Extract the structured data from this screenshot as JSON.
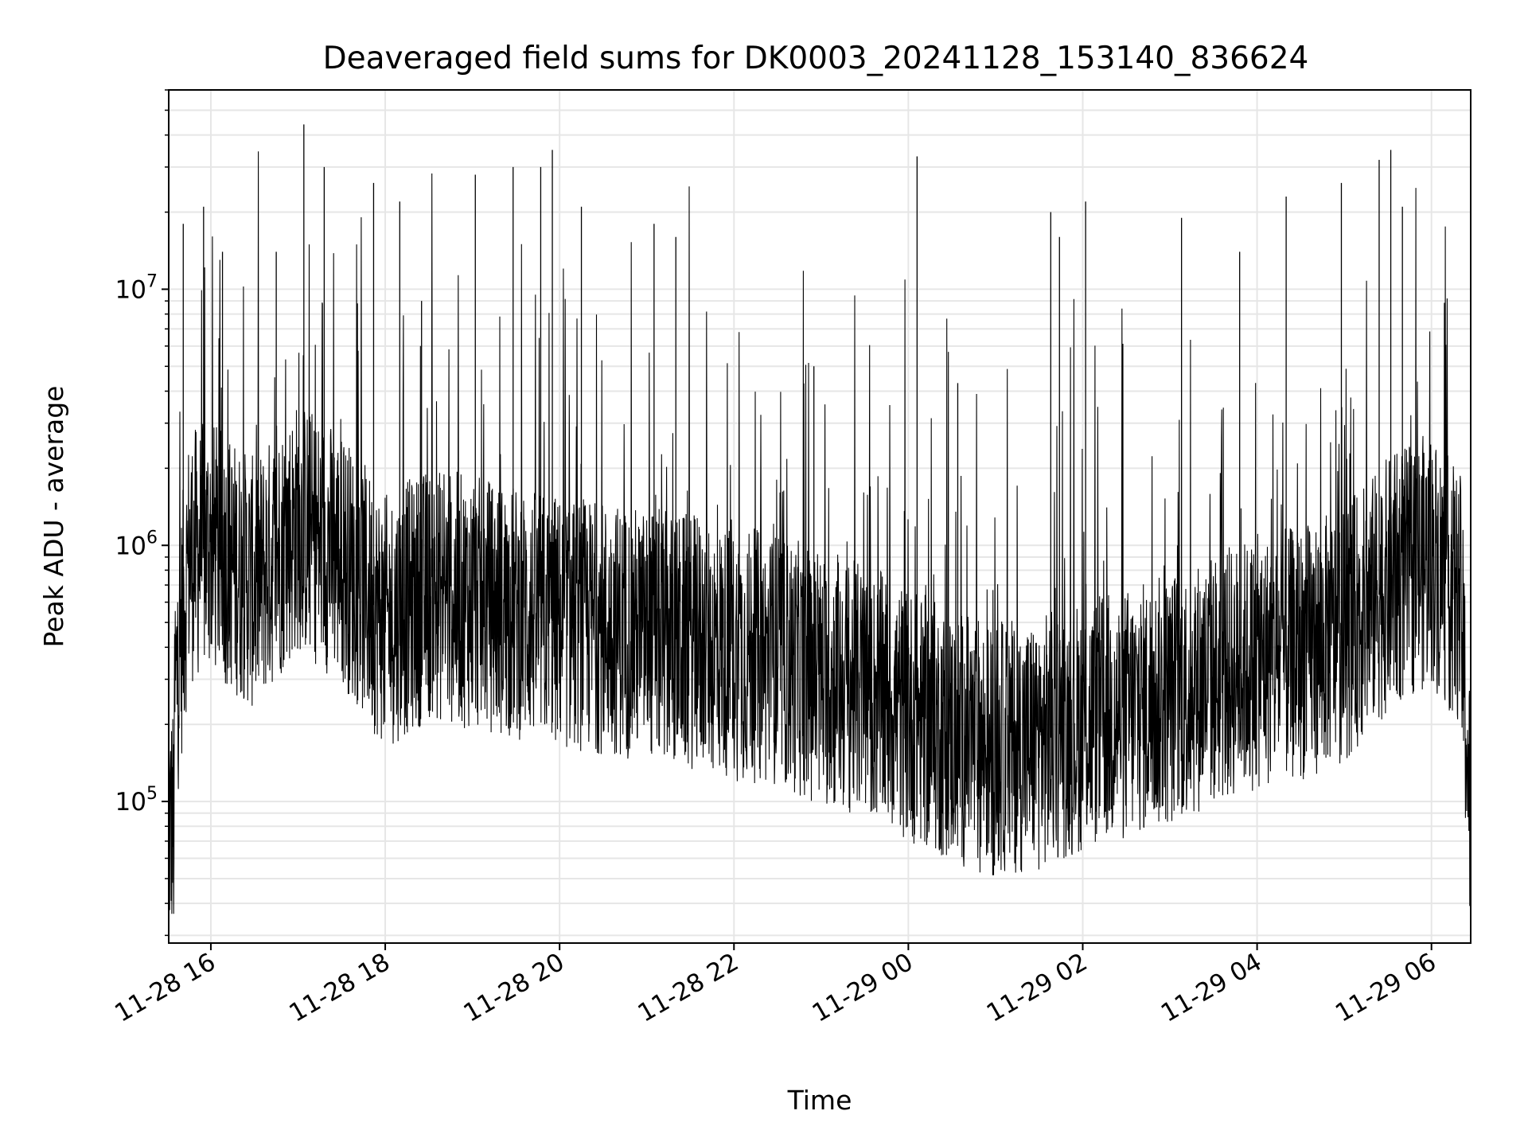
{
  "chart_data": {
    "type": "line",
    "title": "Deaveraged field sums for DK0003_20241128_153140_836624",
    "xlabel": "Time",
    "ylabel": "Peak ADU - average",
    "yscale": "log",
    "ylim": [
      28000,
      60000000
    ],
    "xlim": [
      "2024-11-28 15:31",
      "2024-11-29 06:27"
    ],
    "grid": true,
    "line_color": "#000000",
    "grid_color": "#e6e6e6",
    "x_ticks": [
      {
        "time": "2024-11-28 16:00",
        "label": "11-28 16"
      },
      {
        "time": "2024-11-28 18:00",
        "label": "11-28 18"
      },
      {
        "time": "2024-11-28 20:00",
        "label": "11-28 20"
      },
      {
        "time": "2024-11-28 22:00",
        "label": "11-28 22"
      },
      {
        "time": "2024-11-29 00:00",
        "label": "11-29 00"
      },
      {
        "time": "2024-11-29 02:00",
        "label": "11-29 02"
      },
      {
        "time": "2024-11-29 04:00",
        "label": "11-29 04"
      },
      {
        "time": "2024-11-29 06:00",
        "label": "11-29 06"
      }
    ],
    "y_ticks": [
      {
        "value": 100000,
        "base": "10",
        "exp": "5"
      },
      {
        "value": 1000000,
        "base": "10",
        "exp": "6"
      },
      {
        "value": 10000000,
        "base": "10",
        "exp": "7"
      }
    ],
    "series": [
      {
        "x": [
          "2024-11-28 15:35",
          "2024-11-28 15:45",
          "2024-11-28 16:00",
          "2024-11-28 16:30",
          "2024-11-28 17:00",
          "2024-11-28 17:30",
          "2024-11-28 18:00",
          "2024-11-28 18:30",
          "2024-11-28 19:00",
          "2024-11-28 19:30",
          "2024-11-28 20:00",
          "2024-11-28 20:30",
          "2024-11-28 21:00",
          "2024-11-28 21:30",
          "2024-11-28 22:00",
          "2024-11-28 22:30",
          "2024-11-28 23:00",
          "2024-11-28 23:30",
          "2024-11-29 00:00",
          "2024-11-29 00:30",
          "2024-11-29 01:00",
          "2024-11-29 01:30",
          "2024-11-29 02:00",
          "2024-11-29 02:30",
          "2024-11-29 03:00",
          "2024-11-29 03:30",
          "2024-11-29 04:00",
          "2024-11-29 04:30",
          "2024-11-29 05:00",
          "2024-11-29 05:30",
          "2024-11-29 06:00",
          "2024-11-29 06:20",
          "2024-11-29 06:27"
        ],
        "y": [
          250000,
          900000,
          1000000,
          700000,
          1200000,
          900000,
          500000,
          650000,
          600000,
          550000,
          500000,
          480000,
          450000,
          420000,
          380000,
          360000,
          300000,
          270000,
          220000,
          180000,
          160000,
          170000,
          200000,
          220000,
          250000,
          300000,
          350000,
          380000,
          450000,
          700000,
          900000,
          600000,
          80000
        ]
      },
      {
        "name_hidden": true,
        "x": [
          "2024-11-28 15:41",
          "2024-11-28 15:55",
          "2024-11-28 16:08",
          "2024-11-28 16:45",
          "2024-11-28 17:04",
          "2024-11-28 17:18",
          "2024-11-28 17:52",
          "2024-11-28 18:10",
          "2024-11-28 18:25",
          "2024-11-28 19:02",
          "2024-11-28 19:28",
          "2024-11-28 19:47",
          "2024-11-28 19:55",
          "2024-11-28 20:15",
          "2024-11-28 21:05",
          "2024-11-28 21:20",
          "2024-11-28 22:55",
          "2024-11-29 00:06",
          "2024-11-29 00:34",
          "2024-11-29 01:38",
          "2024-11-29 01:44",
          "2024-11-29 02:02",
          "2024-11-29 03:08",
          "2024-11-29 03:48",
          "2024-11-29 04:20",
          "2024-11-29 04:58",
          "2024-11-29 05:24",
          "2024-11-29 05:32",
          "2024-11-29 05:40"
        ],
        "y": [
          18000000,
          21000000,
          14000000,
          14000000,
          44000000,
          30000000,
          26000000,
          22000000,
          9000000,
          28000000,
          30000000,
          30000000,
          35000000,
          21000000,
          18000000,
          16000000,
          5000000,
          33000000,
          4300000,
          20000000,
          16000000,
          22000000,
          19000000,
          14000000,
          23000000,
          26000000,
          32000000,
          35000000,
          21000000
        ]
      }
    ]
  }
}
